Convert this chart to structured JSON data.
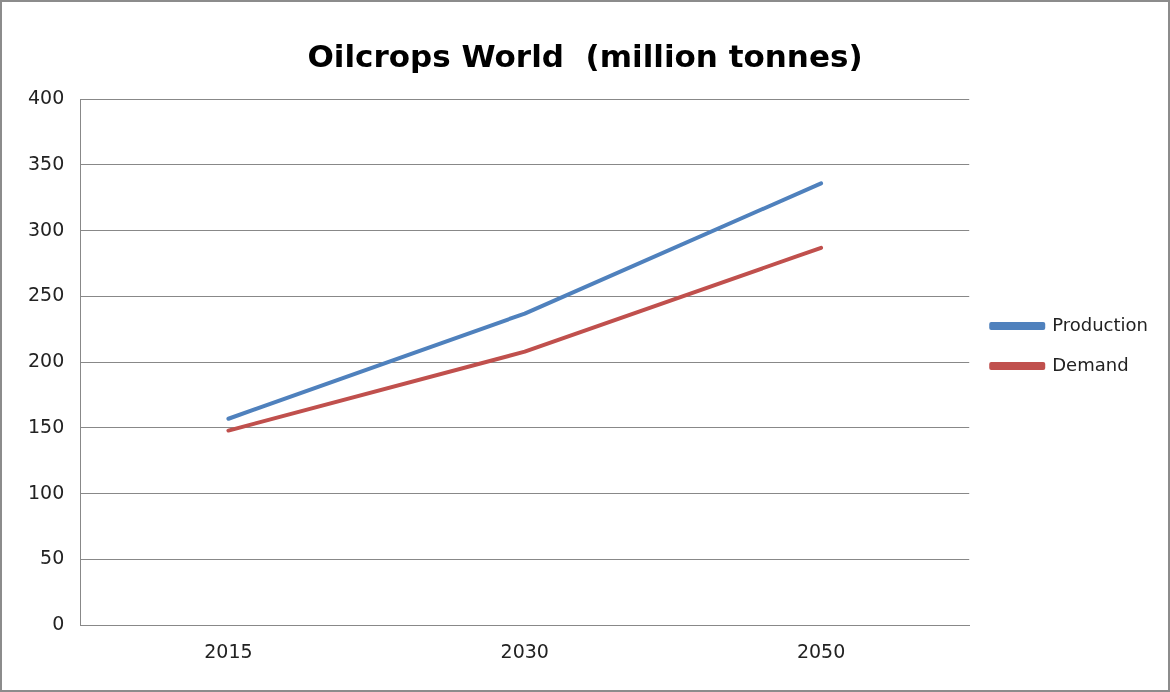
{
  "chart_data": {
    "type": "line",
    "title": "Oilcrops World  (million tonnes)",
    "categories": [
      "2015",
      "2030",
      "2050"
    ],
    "series": [
      {
        "name": "Production",
        "color": "#4f81bd",
        "values": [
          157,
          237,
          336
        ]
      },
      {
        "name": "Demand",
        "color": "#c0504d",
        "values": [
          148,
          208,
          287
        ]
      }
    ],
    "ylim": [
      0,
      400
    ],
    "yticks": [
      0,
      50,
      100,
      150,
      200,
      250,
      300,
      350,
      400
    ],
    "grid": "y",
    "legend": "right",
    "marker": "none",
    "line_style": "solid"
  }
}
